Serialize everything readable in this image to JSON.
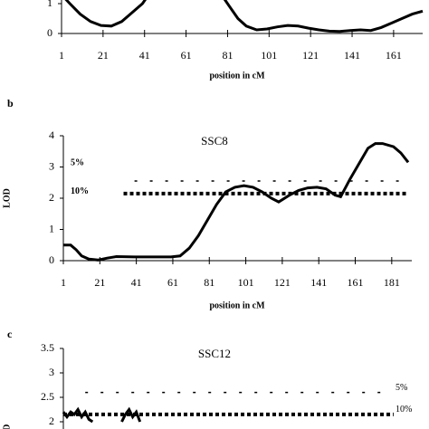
{
  "chart_data": [
    {
      "type": "line",
      "title": null,
      "xlabel": "position in cM",
      "ylabel": null,
      "x": [
        1,
        5,
        10,
        15,
        20,
        25,
        30,
        35,
        40,
        43,
        null,
        78,
        82,
        86,
        90,
        95,
        100,
        105,
        110,
        115,
        120,
        125,
        130,
        135,
        140,
        145,
        150,
        155,
        160,
        165,
        170,
        175
      ],
      "values": [
        1.3,
        1.0,
        0.65,
        0.4,
        0.27,
        0.25,
        0.4,
        0.7,
        1.0,
        1.3,
        null,
        1.3,
        0.9,
        0.5,
        0.25,
        0.12,
        0.15,
        0.22,
        0.27,
        0.25,
        0.18,
        0.12,
        0.08,
        0.07,
        0.1,
        0.12,
        0.1,
        0.2,
        0.35,
        0.5,
        0.65,
        0.75
      ],
      "xlim": [
        1,
        175
      ],
      "ylim": [
        0,
        4
      ],
      "xticks": [
        1,
        21,
        41,
        61,
        81,
        101,
        121,
        141,
        161
      ],
      "yticks": [
        0,
        1
      ]
    },
    {
      "type": "line",
      "panel": "b",
      "title": "SSC8",
      "xlabel": "position in cM",
      "ylabel": "LOD",
      "x": [
        1,
        5,
        8,
        11,
        15,
        20,
        25,
        30,
        40,
        50,
        60,
        65,
        70,
        75,
        80,
        85,
        90,
        95,
        100,
        105,
        110,
        115,
        119,
        125,
        130,
        135,
        140,
        145,
        150,
        153,
        158,
        163,
        168,
        172,
        176,
        182,
        186,
        190
      ],
      "values": [
        0.5,
        0.5,
        0.35,
        0.15,
        0.05,
        0.02,
        0.08,
        0.13,
        0.12,
        0.12,
        0.12,
        0.15,
        0.4,
        0.8,
        1.3,
        1.8,
        2.2,
        2.35,
        2.4,
        2.35,
        2.2,
        2.0,
        1.88,
        2.1,
        2.25,
        2.33,
        2.35,
        2.3,
        2.1,
        2.05,
        2.6,
        3.1,
        3.6,
        3.75,
        3.75,
        3.65,
        3.45,
        3.15
      ],
      "thresholds": [
        {
          "label": "5%",
          "value": 2.55,
          "from": 40,
          "to": 188
        },
        {
          "label": "10%",
          "value": 2.15,
          "from": 34,
          "to": 189
        }
      ],
      "xlim": [
        1,
        192
      ],
      "ylim": [
        0,
        4
      ],
      "xticks": [
        1,
        21,
        41,
        61,
        81,
        101,
        121,
        141,
        161,
        181
      ],
      "yticks": [
        0,
        1,
        2,
        3,
        4
      ]
    },
    {
      "type": "line",
      "panel": "c",
      "title": "SSC12",
      "xlabel": null,
      "ylabel": "LOD",
      "x": [
        1,
        3,
        5,
        7,
        9,
        11,
        13,
        15,
        17,
        null,
        33,
        35,
        37,
        39,
        41,
        43
      ],
      "values": [
        2.2,
        2.1,
        2.2,
        2.15,
        2.25,
        2.1,
        2.2,
        2.05,
        2.0,
        null,
        2.0,
        2.15,
        2.25,
        2.1,
        2.2,
        2.0
      ],
      "thresholds": [
        {
          "label": "5%",
          "value": 2.6,
          "from": 13,
          "to": 180
        },
        {
          "label": "10%",
          "value": 2.15,
          "from": 1,
          "to": 182
        }
      ],
      "xlim": [
        1,
        192
      ],
      "ylim": [
        0,
        3.5
      ],
      "xticks": [],
      "yticks": [
        2,
        2.5,
        3,
        3.5
      ]
    }
  ]
}
